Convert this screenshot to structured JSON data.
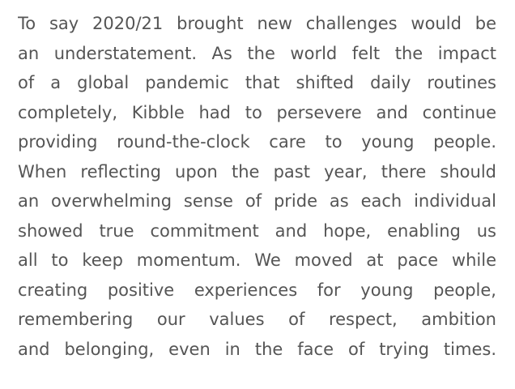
{
  "paragraph": {
    "lines": [
      "To say 2020/21 brought new challenges would be",
      "an understatement. As the world felt the impact",
      "of a global pandemic that shifted daily routines",
      "completely, Kibble had to persevere and continue",
      "providing round-the-clock care to young people.",
      "When reflecting upon the past year, there should",
      "an overwhelming sense of pride as each individual",
      "showed true commitment and hope, enabling us",
      "all to keep momentum. We moved at pace while",
      "creating positive experiences for young people,",
      "remembering our values of respect, ambition",
      "and belonging, even in the face of trying times."
    ]
  }
}
